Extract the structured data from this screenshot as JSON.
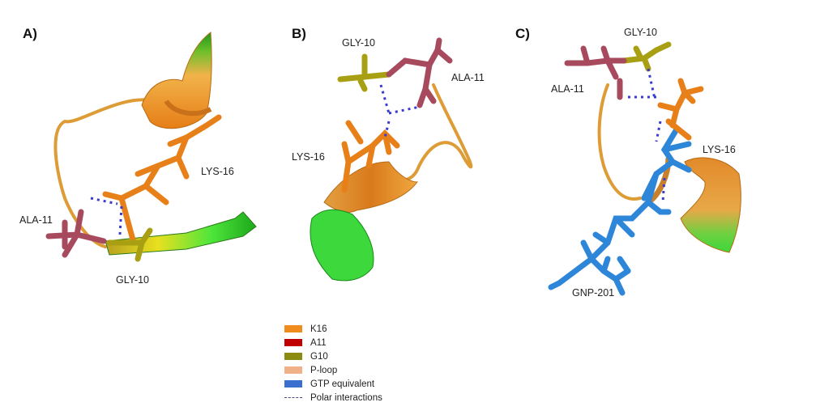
{
  "panels": [
    {
      "label": "A)",
      "residues": [
        "ALA-11",
        "LYS-16",
        "GLY-10"
      ]
    },
    {
      "label": "B)",
      "residues": [
        "GLY-10",
        "ALA-11",
        "LYS-16"
      ]
    },
    {
      "label": "C)",
      "residues": [
        "GLY-10",
        "ALA-11",
        "LYS-16",
        "GNP-201"
      ]
    }
  ],
  "legend": {
    "items": [
      {
        "label": "K16",
        "color": "#f08c1e"
      },
      {
        "label": "A11",
        "color": "#c00000"
      },
      {
        "label": "G10",
        "color": "#8b8b12"
      },
      {
        "label": "P-loop",
        "color": "#f0b088"
      },
      {
        "label": "GTP equivalent",
        "color": "#3a6fd0"
      },
      {
        "label": "Polar interactions",
        "color": "#4a4a7a",
        "style": "dashed"
      }
    ]
  },
  "colors": {
    "lys": "#e8801a",
    "ala": "#a84a5e",
    "gly": "#a8a012",
    "gnp": "#2d86d8",
    "loop": "#e0a040",
    "helix_end": "#3cd83c",
    "polar": "#3a3ad0"
  }
}
